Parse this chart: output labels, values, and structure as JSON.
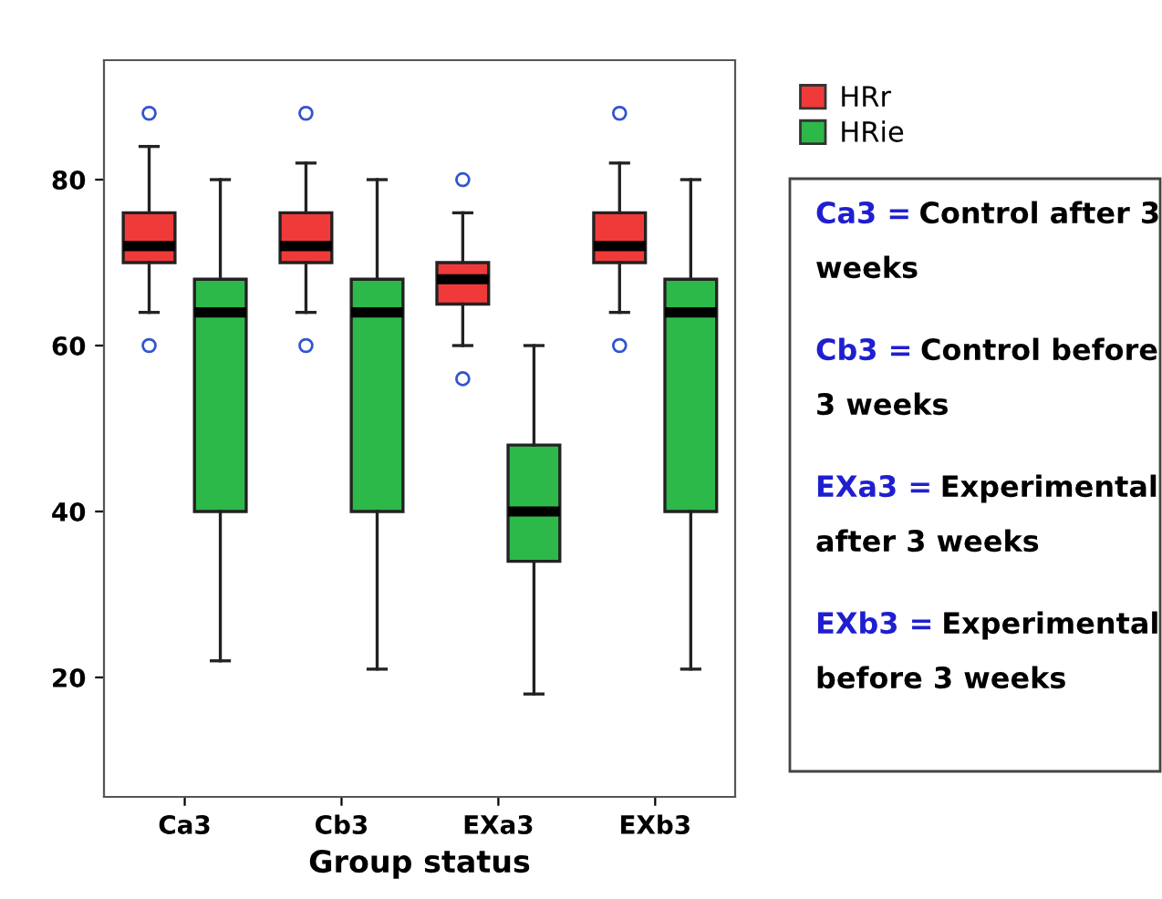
{
  "chart_data": {
    "type": "box",
    "xlabel": "Group status",
    "categories": [
      "Ca3",
      "Cb3",
      "EXa3",
      "EXb3"
    ],
    "ylim": [
      5.6,
      94.4
    ],
    "yticks": [
      20,
      40,
      60,
      80
    ],
    "grid": false,
    "legend": "top right",
    "series": [
      {
        "name": "HRr",
        "color": "#f03a3a",
        "boxes": [
          {
            "low": 64,
            "q1": 70,
            "median": 72,
            "q3": 76,
            "high": 84,
            "outliers": [
              60,
              88
            ]
          },
          {
            "low": 64,
            "q1": 70,
            "median": 72,
            "q3": 76,
            "high": 82,
            "outliers": [
              60,
              88
            ]
          },
          {
            "low": 60,
            "q1": 65,
            "median": 68,
            "q3": 70,
            "high": 76,
            "outliers": [
              56,
              80
            ]
          },
          {
            "low": 64,
            "q1": 70,
            "median": 72,
            "q3": 76,
            "high": 82,
            "outliers": [
              60,
              88
            ]
          }
        ]
      },
      {
        "name": "HRie",
        "color": "#2db84a",
        "boxes": [
          {
            "low": 22,
            "q1": 40,
            "median": 64,
            "q3": 68,
            "high": 80
          },
          {
            "low": 21,
            "q1": 40,
            "median": 64,
            "q3": 68,
            "high": 80
          },
          {
            "low": 18,
            "q1": 34,
            "median": 40,
            "q3": 48,
            "high": 60
          },
          {
            "low": 21,
            "q1": 40,
            "median": 64,
            "q3": 68,
            "high": 80
          }
        ]
      }
    ],
    "annotations": [
      "Ca3 = Control after 3\nweeks",
      "Cb3 = Control before\n3 weeks",
      "EXa3 = Experimental\nafter 3 weeks",
      "EXb3 = Experimental\nbefore 3 weeks"
    ]
  }
}
